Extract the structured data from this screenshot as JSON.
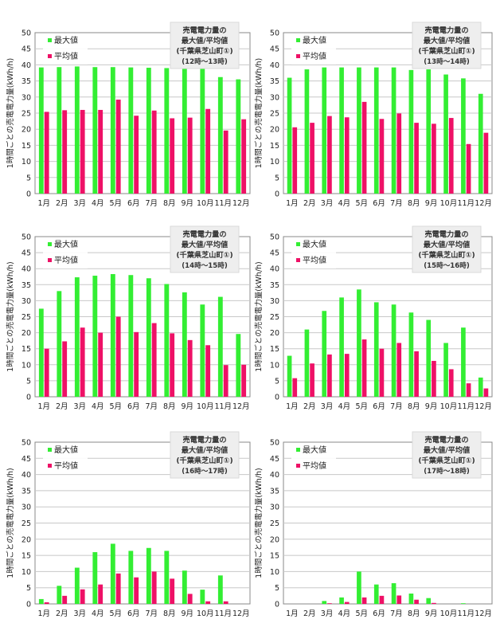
{
  "colors": {
    "max": "#33ee33",
    "avg": "#ee1166",
    "plot_bg": "#ffffff",
    "title_bg": "#eeeeee",
    "axis": "#888888"
  },
  "chart_data": [
    {
      "type": "bar",
      "title": [
        "売電電力量の",
        "最大値/平均値",
        "(千葉県芝山町①)",
        "(12時〜13時)"
      ],
      "ylabel": "1時間ごとの売電電力量(kWh/h)",
      "ylim": [
        0,
        50
      ],
      "yticks": [
        0,
        5,
        10,
        15,
        20,
        25,
        30,
        35,
        40,
        45,
        50
      ],
      "grid": true,
      "legend_position": "top-left",
      "categories": [
        "1月",
        "2月",
        "3月",
        "4月",
        "5月",
        "6月",
        "7月",
        "8月",
        "9月",
        "10月",
        "11月",
        "12月"
      ],
      "series": [
        {
          "name": "最大値",
          "values": [
            39.2,
            39.3,
            39.5,
            39.3,
            39.3,
            39.2,
            39.1,
            39.0,
            39.0,
            39.0,
            36.2,
            35.5
          ]
        },
        {
          "name": "平均値",
          "values": [
            25.4,
            25.9,
            26.0,
            26.0,
            29.2,
            24.2,
            25.8,
            23.4,
            23.6,
            26.3,
            19.6,
            23.1
          ]
        }
      ]
    },
    {
      "type": "bar",
      "title": [
        "売電電力量の",
        "最大値/平均値",
        "(千葉県芝山町①)",
        "(13時〜14時)"
      ],
      "ylabel": "1時間ごとの売電電力量(kWh/h)",
      "ylim": [
        0,
        50
      ],
      "yticks": [
        0,
        5,
        10,
        15,
        20,
        25,
        30,
        35,
        40,
        45,
        50
      ],
      "grid": true,
      "legend_position": "top-left",
      "categories": [
        "1月",
        "2月",
        "3月",
        "4月",
        "5月",
        "6月",
        "7月",
        "8月",
        "9月",
        "10月",
        "11月",
        "12月"
      ],
      "series": [
        {
          "name": "最大値",
          "values": [
            36.0,
            38.6,
            39.2,
            39.2,
            39.2,
            39.2,
            39.2,
            38.4,
            38.6,
            37.0,
            35.8,
            31.0
          ]
        },
        {
          "name": "平均値",
          "values": [
            20.6,
            22.0,
            24.1,
            23.7,
            28.5,
            23.2,
            24.9,
            22.0,
            21.7,
            23.5,
            15.4,
            18.9
          ]
        }
      ]
    },
    {
      "type": "bar",
      "title": [
        "売電電力量の",
        "最大値/平均値",
        "(千葉県芝山町①)",
        "(14時〜15時)"
      ],
      "ylabel": "1時間ごとの売電電力量(kWh/h)",
      "ylim": [
        0,
        50
      ],
      "yticks": [
        0,
        5,
        10,
        15,
        20,
        25,
        30,
        35,
        40,
        45,
        50
      ],
      "grid": true,
      "legend_position": "top-left",
      "categories": [
        "1月",
        "2月",
        "3月",
        "4月",
        "5月",
        "6月",
        "7月",
        "8月",
        "9月",
        "10月",
        "11月",
        "12月"
      ],
      "series": [
        {
          "name": "最大値",
          "values": [
            27.5,
            33.0,
            37.3,
            37.8,
            38.3,
            38.0,
            37.0,
            35.2,
            32.6,
            28.8,
            31.2,
            19.6
          ]
        },
        {
          "name": "平均値",
          "values": [
            15.0,
            17.3,
            21.6,
            20.0,
            25.0,
            20.2,
            23.0,
            19.8,
            17.7,
            16.1,
            9.9,
            10.0
          ]
        }
      ]
    },
    {
      "type": "bar",
      "title": [
        "売電電力量の",
        "最大値/平均値",
        "(千葉県芝山町①)",
        "(15時〜16時)"
      ],
      "ylabel": "1時間ごとの売電電力量(kWh/h)",
      "ylim": [
        0,
        50
      ],
      "yticks": [
        0,
        5,
        10,
        15,
        20,
        25,
        30,
        35,
        40,
        45,
        50
      ],
      "grid": true,
      "legend_position": "top-left",
      "categories": [
        "1月",
        "2月",
        "3月",
        "4月",
        "5月",
        "6月",
        "7月",
        "8月",
        "9月",
        "10月",
        "11月",
        "12月"
      ],
      "series": [
        {
          "name": "最大値",
          "values": [
            12.8,
            21.0,
            26.8,
            31.0,
            33.5,
            29.5,
            28.8,
            26.3,
            24.0,
            16.8,
            21.6,
            6.0
          ]
        },
        {
          "name": "平均値",
          "values": [
            5.8,
            10.4,
            13.2,
            13.4,
            17.9,
            15.0,
            16.8,
            14.2,
            11.2,
            8.6,
            4.2,
            2.6
          ]
        }
      ]
    },
    {
      "type": "bar",
      "title": [
        "売電電力量の",
        "最大値/平均値",
        "(千葉県芝山町①)",
        "(16時〜17時)"
      ],
      "ylabel": "1時間ごとの売電電力量(kWh/h)",
      "ylim": [
        0,
        50
      ],
      "yticks": [
        0,
        5,
        10,
        15,
        20,
        25,
        30,
        35,
        40,
        45,
        50
      ],
      "grid": true,
      "legend_position": "top-left",
      "categories": [
        "1月",
        "2月",
        "3月",
        "4月",
        "5月",
        "6月",
        "7月",
        "8月",
        "9月",
        "10月",
        "11月",
        "12月"
      ],
      "series": [
        {
          "name": "最大値",
          "values": [
            1.5,
            5.6,
            11.2,
            16.0,
            18.6,
            16.4,
            17.3,
            16.4,
            10.3,
            4.4,
            8.8,
            0.0
          ]
        },
        {
          "name": "平均値",
          "values": [
            0.5,
            2.5,
            4.5,
            6.0,
            9.4,
            8.2,
            10.0,
            7.8,
            3.1,
            0.8,
            0.8,
            0.0
          ]
        }
      ]
    },
    {
      "type": "bar",
      "title": [
        "売電電力量の",
        "最大値/平均値",
        "(千葉県芝山町①)",
        "(17時〜18時)"
      ],
      "ylabel": "1時間ごとの売電電力量(kWh/h)",
      "ylim": [
        0,
        50
      ],
      "yticks": [
        0,
        5,
        10,
        15,
        20,
        25,
        30,
        35,
        40,
        45,
        50
      ],
      "grid": true,
      "legend_position": "top-left",
      "categories": [
        "1月",
        "2月",
        "3月",
        "4月",
        "5月",
        "6月",
        "7月",
        "8月",
        "9月",
        "10月",
        "11月",
        "12月"
      ],
      "series": [
        {
          "name": "最大値",
          "values": [
            0.0,
            0.0,
            0.9,
            2.0,
            10.0,
            6.0,
            6.4,
            3.2,
            1.8,
            0.0,
            0.2,
            0.0
          ]
        },
        {
          "name": "平均値",
          "values": [
            0.0,
            0.0,
            0.2,
            0.6,
            2.0,
            2.5,
            2.6,
            1.3,
            0.3,
            0.0,
            0.0,
            0.0
          ]
        }
      ]
    }
  ]
}
